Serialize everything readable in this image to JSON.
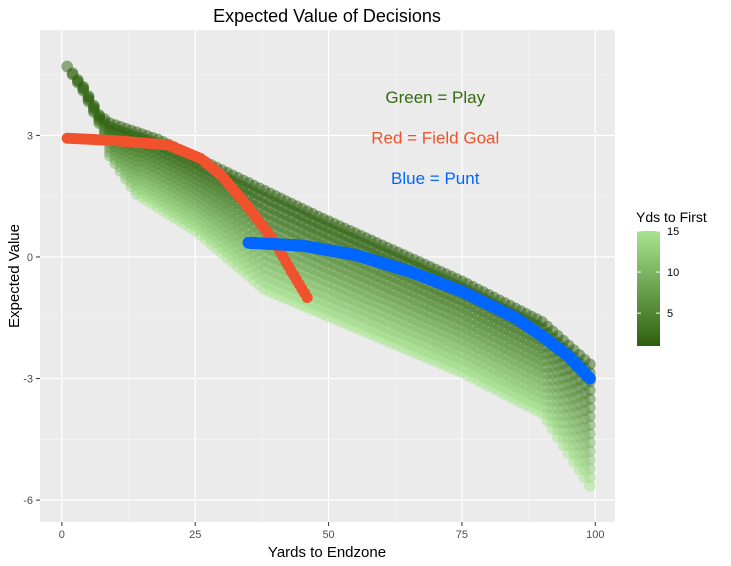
{
  "chart_data": {
    "type": "scatter",
    "title": "Expected Value of Decisions",
    "xlabel": "Yards to Endzone",
    "ylabel": "Expected Value",
    "xlim": [
      -4.1,
      103.7
    ],
    "ylim": [
      -6.54,
      5.6
    ],
    "x_ticks": [
      0,
      25,
      50,
      75,
      100
    ],
    "x_tick_labels": [
      "0",
      "25",
      "50",
      "75",
      "100"
    ],
    "y_ticks": [
      3,
      0,
      -3,
      -6
    ],
    "y_tick_labels": [
      "3",
      "0",
      "-3",
      "-6"
    ],
    "grid": true,
    "annotations": [
      {
        "text": "Green = Play",
        "color": "#336a0f",
        "x": 70,
        "y": 3.95
      },
      {
        "text": "Red = Field Goal",
        "color": "#f0522d",
        "x": 70,
        "y": 2.95
      },
      {
        "text": "Blue = Punt",
        "color": "#0066ff",
        "x": 70,
        "y": 1.95
      }
    ],
    "legend": {
      "title": "Yds to First",
      "placement": "right",
      "range": [
        1,
        15
      ],
      "ticks": [
        15,
        10,
        5
      ],
      "tick_labels": [
        "15",
        "10",
        "5"
      ],
      "color_low": "#2d5f0e",
      "color_high": "#a8e590"
    },
    "series": [
      {
        "kind": "play",
        "color_by": "yds_to_first",
        "x": [
          1,
          4,
          7,
          9,
          18,
          25,
          48,
          75,
          90,
          99
        ],
        "y_yds_to_first_1": [
          4.7,
          4.2,
          3.5,
          3.3,
          2.9,
          2.46,
          1.0,
          -0.6,
          -1.6,
          -2.65
        ],
        "x_max": [
          1,
          4,
          7,
          9,
          14,
          25,
          38,
          75,
          90,
          99
        ],
        "y_max_yds_to_first": [
          4.7,
          4.1,
          3.3,
          2.5,
          1.55,
          0.65,
          -0.8,
          -2.85,
          -3.85,
          -5.65
        ]
      },
      {
        "kind": "field_goal",
        "color": "#f0522d",
        "x": [
          1,
          10,
          20,
          26,
          30,
          35,
          40,
          43,
          46
        ],
        "y": [
          2.93,
          2.87,
          2.76,
          2.43,
          2.0,
          1.22,
          0.35,
          -0.35,
          -1.0
        ]
      },
      {
        "kind": "punt",
        "color": "#0066ff",
        "x": [
          35,
          45,
          55,
          65,
          75,
          85,
          90,
          95,
          99
        ],
        "y": [
          0.35,
          0.28,
          0.05,
          -0.35,
          -0.85,
          -1.5,
          -1.95,
          -2.45,
          -3.0
        ]
      }
    ]
  }
}
